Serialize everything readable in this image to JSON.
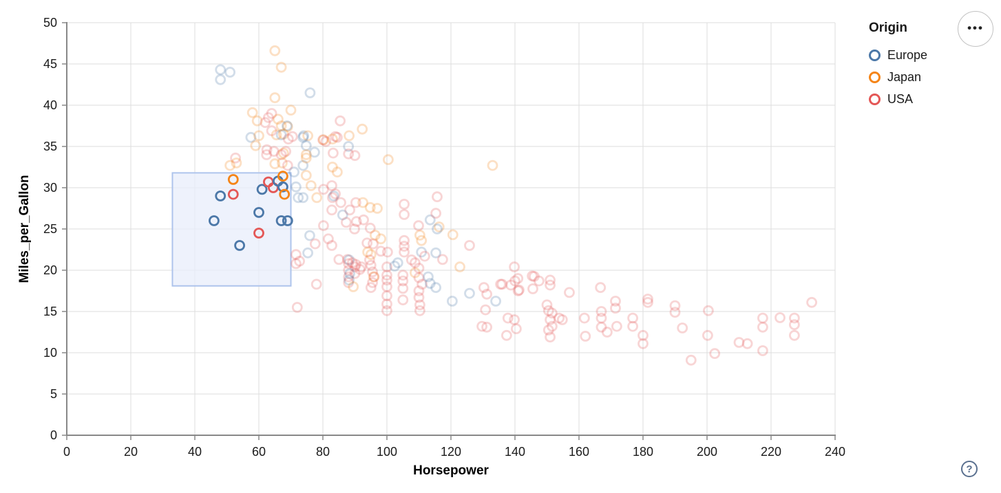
{
  "chart_data": {
    "type": "scatter",
    "xlabel": "Horsepower",
    "ylabel": "Miles_per_Gallon",
    "xlim": [
      0,
      240
    ],
    "ylim": [
      0,
      50
    ],
    "x_ticks": [
      0,
      20,
      40,
      60,
      80,
      100,
      120,
      140,
      160,
      180,
      200,
      220,
      240
    ],
    "y_ticks": [
      0,
      5,
      10,
      15,
      20,
      25,
      30,
      35,
      40,
      45,
      50
    ],
    "grid": true,
    "legend": {
      "title": "Origin",
      "position": "top-right",
      "items": [
        {
          "label": "Europe",
          "color": "#4c78a8"
        },
        {
          "label": "Japan",
          "color": "#f58518"
        },
        {
          "label": "USA",
          "color": "#e45756"
        }
      ]
    },
    "origin_codes": {
      "E": "Europe",
      "J": "Japan",
      "U": "USA"
    },
    "brush": {
      "hp": [
        33,
        70
      ],
      "mpg": [
        18.1,
        31.8
      ],
      "fill": "#e8eefb",
      "fill_opacity": 0.75,
      "stroke": "#aec4ec"
    },
    "mark": {
      "shape": "hollow-circle",
      "radius": 6.5,
      "stroke_width": 2.8,
      "unselected_opacity": 0.25,
      "selected_opacity": 1
    },
    "axis_colors": {
      "grid": "#dddddd",
      "domain": "#888888",
      "tick": "#888888",
      "label": "#1a1a1a"
    },
    "points": [
      [
        46,
        26,
        "E"
      ],
      [
        48,
        29,
        "E"
      ],
      [
        52,
        29.2,
        "U"
      ],
      [
        52,
        31,
        "J"
      ],
      [
        54,
        23,
        "E"
      ],
      [
        60,
        24.5,
        "U"
      ],
      [
        60,
        27,
        "E"
      ],
      [
        61,
        29.8,
        "E"
      ],
      [
        63,
        30.7,
        "U"
      ],
      [
        64.5,
        30,
        "U"
      ],
      [
        66,
        30.8,
        "E"
      ],
      [
        67,
        26,
        "E"
      ],
      [
        67.5,
        30.1,
        "E"
      ],
      [
        67.5,
        31.4,
        "J"
      ],
      [
        68,
        29.2,
        "J"
      ],
      [
        69,
        26,
        "E"
      ],
      [
        65,
        46.6,
        "J"
      ],
      [
        67,
        44.6,
        "J"
      ],
      [
        48,
        44.3,
        "E"
      ],
      [
        51,
        44,
        "E"
      ],
      [
        48,
        43.1,
        "E"
      ],
      [
        76,
        41.5,
        "E"
      ],
      [
        65,
        40.9,
        "J"
      ],
      [
        58,
        39.1,
        "J"
      ],
      [
        64,
        39,
        "U"
      ],
      [
        70,
        39.4,
        "J"
      ],
      [
        85.4,
        38.1,
        "U"
      ],
      [
        59.5,
        38.1,
        "J"
      ],
      [
        62,
        37.9,
        "U"
      ],
      [
        63,
        38.5,
        "U"
      ],
      [
        66,
        38.3,
        "J"
      ],
      [
        67,
        37.5,
        "J"
      ],
      [
        69,
        37.4,
        "J"
      ],
      [
        68.8,
        37.5,
        "E"
      ],
      [
        92.3,
        37.1,
        "J"
      ],
      [
        64,
        36.9,
        "U"
      ],
      [
        65.5,
        36.4,
        "J"
      ],
      [
        67.7,
        36.5,
        "J"
      ],
      [
        57.5,
        36.1,
        "E"
      ],
      [
        60,
        36.3,
        "J"
      ],
      [
        69.2,
        35.9,
        "U"
      ],
      [
        70.5,
        36.2,
        "U"
      ],
      [
        74,
        36.3,
        "E"
      ],
      [
        75.3,
        36.3,
        "J"
      ],
      [
        67,
        36.4,
        "E"
      ],
      [
        83.9,
        36.2,
        "U"
      ],
      [
        88.2,
        36.3,
        "J"
      ],
      [
        84.5,
        36.1,
        "U"
      ],
      [
        73.8,
        36.1,
        "E"
      ],
      [
        59,
        35.1,
        "J"
      ],
      [
        74.8,
        35.1,
        "E"
      ],
      [
        88,
        35,
        "E"
      ],
      [
        80,
        35.8,
        "U"
      ],
      [
        80.2,
        35.8,
        "J"
      ],
      [
        83,
        35.9,
        "J"
      ],
      [
        80.9,
        35.6,
        "U"
      ],
      [
        62.5,
        34.6,
        "U"
      ],
      [
        64.7,
        34.4,
        "U"
      ],
      [
        67,
        34,
        "U"
      ],
      [
        68.4,
        34.4,
        "U"
      ],
      [
        67.7,
        34.2,
        "J"
      ],
      [
        62.4,
        34,
        "U"
      ],
      [
        77.4,
        34.3,
        "E"
      ],
      [
        74.8,
        34,
        "J"
      ],
      [
        83.2,
        34.2,
        "U"
      ],
      [
        88,
        34.1,
        "U"
      ],
      [
        90,
        33.9,
        "U"
      ],
      [
        52.7,
        33.6,
        "U"
      ],
      [
        53,
        33,
        "J"
      ],
      [
        51,
        32.7,
        "J"
      ],
      [
        65,
        32.9,
        "J"
      ],
      [
        67.3,
        33,
        "J"
      ],
      [
        69,
        32.7,
        "U"
      ],
      [
        73.8,
        32.7,
        "E"
      ],
      [
        74.8,
        33.6,
        "J"
      ],
      [
        100.4,
        33.4,
        "J"
      ],
      [
        133,
        32.7,
        "J"
      ],
      [
        71,
        31.9,
        "E"
      ],
      [
        84.5,
        31.9,
        "J"
      ],
      [
        83,
        32.5,
        "J"
      ],
      [
        76.3,
        30.25,
        "J"
      ],
      [
        74.8,
        31.5,
        "J"
      ],
      [
        73.8,
        28.8,
        "E"
      ],
      [
        71.6,
        30.1,
        "E"
      ],
      [
        72.3,
        28.8,
        "E"
      ],
      [
        80.2,
        29.8,
        "U"
      ],
      [
        82.8,
        30.25,
        "U"
      ],
      [
        83.9,
        29.25,
        "U"
      ],
      [
        83,
        28.8,
        "U"
      ],
      [
        78.1,
        28.8,
        "J"
      ],
      [
        83.4,
        29,
        "E"
      ],
      [
        85.6,
        28.2,
        "U"
      ],
      [
        90.3,
        28.2,
        "U"
      ],
      [
        88.4,
        27.3,
        "U"
      ],
      [
        92.5,
        28.2,
        "J"
      ],
      [
        94.8,
        27.6,
        "J"
      ],
      [
        97,
        27.5,
        "J"
      ],
      [
        86.2,
        26.7,
        "E"
      ],
      [
        82.8,
        27.3,
        "U"
      ],
      [
        105.4,
        28,
        "U"
      ],
      [
        105.4,
        26.75,
        "U"
      ],
      [
        115.7,
        28.9,
        "U"
      ],
      [
        113.5,
        26.1,
        "E"
      ],
      [
        115.3,
        26.9,
        "U"
      ],
      [
        87.3,
        25.8,
        "U"
      ],
      [
        90.5,
        25.9,
        "U"
      ],
      [
        92.7,
        26.1,
        "U"
      ],
      [
        89.9,
        25,
        "U"
      ],
      [
        94.8,
        25.1,
        "U"
      ],
      [
        116.3,
        25.25,
        "J"
      ],
      [
        115.7,
        25,
        "E"
      ],
      [
        109.9,
        25.4,
        "U"
      ],
      [
        120.6,
        24.3,
        "J"
      ],
      [
        110.3,
        24.25,
        "J"
      ],
      [
        110.8,
        23.6,
        "J"
      ],
      [
        125.8,
        23,
        "U"
      ],
      [
        96.3,
        24.25,
        "J"
      ],
      [
        98.1,
        23.8,
        "J"
      ],
      [
        93.8,
        23.3,
        "U"
      ],
      [
        95.7,
        23.2,
        "U"
      ],
      [
        75.9,
        24.2,
        "E"
      ],
      [
        77.6,
        23.2,
        "U"
      ],
      [
        81.7,
        23.8,
        "U"
      ],
      [
        82.8,
        23,
        "U"
      ],
      [
        80.2,
        25.4,
        "U"
      ],
      [
        98.1,
        22.3,
        "U"
      ],
      [
        100.2,
        22.2,
        "U"
      ],
      [
        85,
        21.3,
        "U"
      ],
      [
        87.7,
        21.3,
        "U"
      ],
      [
        90.3,
        20.7,
        "U"
      ],
      [
        92,
        20.4,
        "U"
      ],
      [
        88.2,
        21.25,
        "E"
      ],
      [
        94,
        22.2,
        "J"
      ],
      [
        95,
        21.9,
        "J"
      ],
      [
        105.4,
        23.6,
        "U"
      ],
      [
        105.4,
        22.9,
        "U"
      ],
      [
        105.4,
        22.2,
        "U"
      ],
      [
        110.8,
        22.2,
        "E"
      ],
      [
        111.8,
        21.7,
        "U"
      ],
      [
        115.3,
        22.1,
        "E"
      ],
      [
        122.8,
        20.4,
        "J"
      ],
      [
        139.8,
        20.4,
        "U"
      ],
      [
        75.3,
        22.1,
        "E"
      ],
      [
        71.6,
        21.9,
        "U"
      ],
      [
        72.7,
        21.1,
        "U"
      ],
      [
        71.6,
        20.8,
        "U"
      ],
      [
        117.4,
        21.3,
        "U"
      ],
      [
        88,
        20.8,
        "U"
      ],
      [
        88,
        20,
        "U"
      ],
      [
        88,
        19.2,
        "U"
      ],
      [
        88,
        18.5,
        "U"
      ],
      [
        90,
        20.4,
        "U"
      ],
      [
        90,
        19.6,
        "U"
      ],
      [
        88.4,
        19.6,
        "E"
      ],
      [
        88.2,
        18.8,
        "E"
      ],
      [
        89.5,
        18,
        "J"
      ],
      [
        89.2,
        20.9,
        "U"
      ],
      [
        91.6,
        20.1,
        "U"
      ],
      [
        94.6,
        21.25,
        "U"
      ],
      [
        95,
        20.6,
        "U"
      ],
      [
        95.5,
        19.8,
        "U"
      ],
      [
        96,
        19.2,
        "U"
      ],
      [
        95.5,
        18.5,
        "U"
      ],
      [
        95,
        17.9,
        "U"
      ],
      [
        95.9,
        19.2,
        "J"
      ],
      [
        100,
        20.4,
        "U"
      ],
      [
        100,
        19.4,
        "U"
      ],
      [
        100,
        18.8,
        "U"
      ],
      [
        100,
        18,
        "U"
      ],
      [
        100,
        16.9,
        "U"
      ],
      [
        100,
        15.9,
        "U"
      ],
      [
        100,
        15.1,
        "U"
      ],
      [
        102.4,
        20.5,
        "E"
      ],
      [
        103.4,
        20.9,
        "E"
      ],
      [
        105,
        19.4,
        "U"
      ],
      [
        105,
        18.7,
        "U"
      ],
      [
        105,
        17.8,
        "U"
      ],
      [
        105,
        16.4,
        "U"
      ],
      [
        107.7,
        21.25,
        "U"
      ],
      [
        108.8,
        20.9,
        "U"
      ],
      [
        108.8,
        19.7,
        "J"
      ],
      [
        110,
        20.25,
        "U"
      ],
      [
        110,
        19.1,
        "U"
      ],
      [
        111,
        18.3,
        "U"
      ],
      [
        110,
        17.5,
        "U"
      ],
      [
        110,
        16.7,
        "U"
      ],
      [
        110.3,
        15.8,
        "U"
      ],
      [
        110.3,
        15.1,
        "U"
      ],
      [
        112.9,
        19.2,
        "E"
      ],
      [
        113.5,
        18.4,
        "E"
      ],
      [
        115.3,
        17.9,
        "E"
      ],
      [
        120.4,
        16.25,
        "E"
      ],
      [
        125.8,
        17.2,
        "E"
      ],
      [
        134,
        16.25,
        "E"
      ],
      [
        130.8,
        15.2,
        "U"
      ],
      [
        130.3,
        17.9,
        "U"
      ],
      [
        131.2,
        17.1,
        "U"
      ],
      [
        136,
        18.3,
        "U"
      ],
      [
        140,
        18.7,
        "U"
      ],
      [
        145.4,
        19.3,
        "U"
      ],
      [
        147.5,
        18.7,
        "U"
      ],
      [
        141,
        17.5,
        "U"
      ],
      [
        135.5,
        18.3,
        "U"
      ],
      [
        138.7,
        18.2,
        "U"
      ],
      [
        141.3,
        17.6,
        "U"
      ],
      [
        140.9,
        19,
        "U"
      ],
      [
        145.6,
        17.75,
        "U"
      ],
      [
        146,
        19.25,
        "U"
      ],
      [
        151,
        18.8,
        "U"
      ],
      [
        151,
        18.2,
        "U"
      ],
      [
        157,
        17.3,
        "U"
      ],
      [
        166.7,
        17.9,
        "U"
      ],
      [
        72,
        15.5,
        "U"
      ],
      [
        78,
        18.3,
        "U"
      ],
      [
        137.8,
        14.2,
        "U"
      ],
      [
        139.8,
        14,
        "U"
      ],
      [
        140.4,
        12.9,
        "U"
      ],
      [
        150,
        15.8,
        "U"
      ],
      [
        150.5,
        15.1,
        "U"
      ],
      [
        151.6,
        14.8,
        "U"
      ],
      [
        151,
        14,
        "U"
      ],
      [
        151.6,
        13.2,
        "U"
      ],
      [
        150.5,
        12.75,
        "U"
      ],
      [
        153.8,
        14.2,
        "U"
      ],
      [
        154.8,
        14,
        "U"
      ],
      [
        151,
        11.9,
        "U"
      ],
      [
        129.7,
        13.2,
        "U"
      ],
      [
        131.2,
        13.1,
        "U"
      ],
      [
        137.4,
        12.1,
        "U"
      ],
      [
        161.7,
        14.2,
        "U"
      ],
      [
        162,
        12,
        "U"
      ],
      [
        167,
        15,
        "U"
      ],
      [
        167,
        14.2,
        "U"
      ],
      [
        167,
        13.1,
        "U"
      ],
      [
        168.8,
        12.5,
        "U"
      ],
      [
        171.4,
        16.25,
        "U"
      ],
      [
        171.4,
        15.4,
        "U"
      ],
      [
        171.8,
        13.2,
        "U"
      ],
      [
        176.8,
        14.2,
        "U"
      ],
      [
        176.8,
        13.2,
        "U"
      ],
      [
        181.5,
        16.5,
        "U"
      ],
      [
        181.5,
        16.1,
        "U"
      ],
      [
        180,
        12.1,
        "U"
      ],
      [
        180,
        11.1,
        "U"
      ],
      [
        190,
        15.7,
        "U"
      ],
      [
        190,
        14.9,
        "U"
      ],
      [
        192.3,
        13,
        "U"
      ],
      [
        195,
        9.1,
        "U"
      ],
      [
        200.4,
        15.1,
        "U"
      ],
      [
        200.2,
        12.1,
        "U"
      ],
      [
        202.4,
        9.9,
        "U"
      ],
      [
        210,
        11.25,
        "U"
      ],
      [
        212.6,
        11.1,
        "U"
      ],
      [
        217.4,
        14.2,
        "U"
      ],
      [
        217.4,
        13.1,
        "U"
      ],
      [
        217.4,
        10.25,
        "U"
      ],
      [
        222.8,
        14.25,
        "U"
      ],
      [
        227.3,
        14.2,
        "U"
      ],
      [
        227.3,
        13.4,
        "U"
      ],
      [
        227.3,
        12.1,
        "U"
      ],
      [
        232.7,
        16.1,
        "U"
      ]
    ]
  },
  "toolbar": {
    "more_options_icon": "•••",
    "help_icon": "?"
  }
}
